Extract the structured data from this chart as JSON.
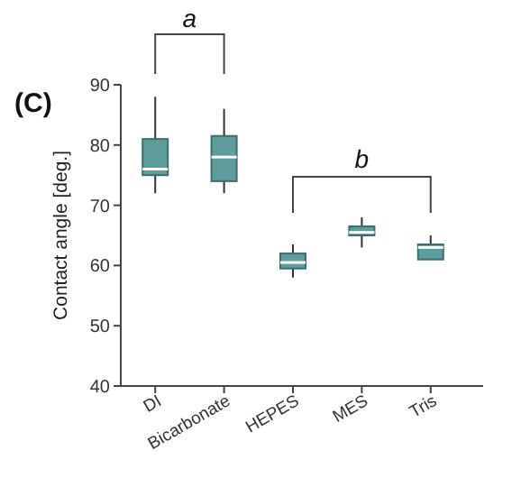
{
  "chart_data": {
    "type": "box",
    "ylabel": "Contact angle [deg.]",
    "categories": [
      "DI",
      "Bicarbonate",
      "HEPES",
      "MES",
      "Tris"
    ],
    "boxes": [
      {
        "low": 72,
        "q1": 75,
        "median": 76,
        "q3": 81,
        "high": 88
      },
      {
        "low": 72,
        "q1": 74,
        "median": 78,
        "q3": 81.5,
        "high": 86
      },
      {
        "low": 58,
        "q1": 59.5,
        "median": 60.5,
        "q3": 62,
        "high": 63.5
      },
      {
        "low": 63,
        "q1": 65,
        "median": 65.5,
        "q3": 66.5,
        "high": 68
      },
      {
        "low": 61,
        "q1": 61,
        "median": 63,
        "q3": 63.5,
        "high": 65
      }
    ],
    "color": "#5f9c9c",
    "ylim": [
      40,
      90
    ],
    "yticks": [
      40,
      50,
      60,
      70,
      80,
      90
    ],
    "annotations": [
      "(C)",
      "a",
      "b"
    ]
  }
}
